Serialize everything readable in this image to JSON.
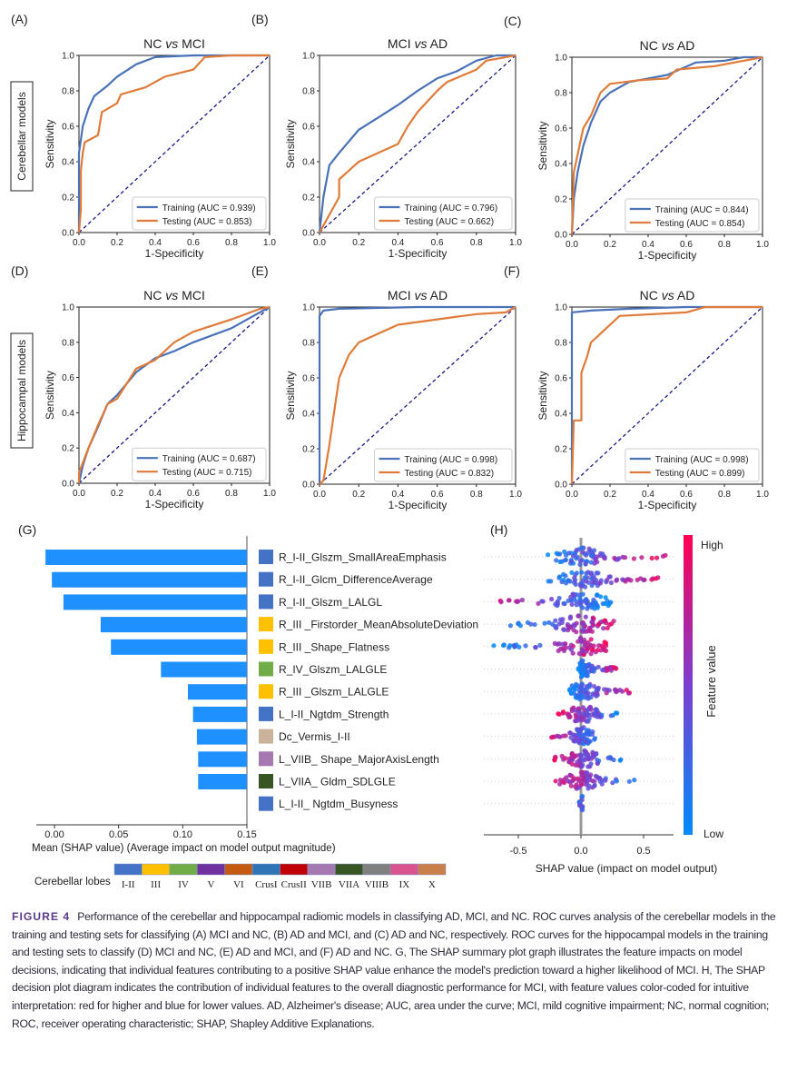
{
  "side_labels": {
    "cerebellar": "Cerebellar models",
    "hippocampal": "Hippocampal models"
  },
  "chart_data": [
    {
      "type": "line",
      "panel": "(A)",
      "title_left": "NC",
      "title_vs": "vs",
      "title_right": "MCI",
      "xlabel": "1-Specificity",
      "ylabel": "Sensitivity",
      "xlim": [
        0,
        1
      ],
      "ylim": [
        0,
        1
      ],
      "ticks": [
        "0.0",
        "0.2",
        "0.4",
        "0.6",
        "0.8",
        "1.0"
      ],
      "series": [
        {
          "name": "Training (AUC = 0.939)",
          "color": "#4a72b8",
          "points": [
            [
              0,
              0
            ],
            [
              0,
              0.45
            ],
            [
              0.02,
              0.6
            ],
            [
              0.05,
              0.7
            ],
            [
              0.08,
              0.77
            ],
            [
              0.15,
              0.83
            ],
            [
              0.2,
              0.88
            ],
            [
              0.3,
              0.95
            ],
            [
              0.4,
              0.99
            ],
            [
              0.6,
              1
            ],
            [
              1,
              1
            ]
          ]
        },
        {
          "name": "Testing (AUC = 0.853)",
          "color": "#e07b39",
          "points": [
            [
              0,
              0
            ],
            [
              0.01,
              0.13
            ],
            [
              0.01,
              0.35
            ],
            [
              0.02,
              0.45
            ],
            [
              0.03,
              0.51
            ],
            [
              0.1,
              0.55
            ],
            [
              0.12,
              0.68
            ],
            [
              0.2,
              0.73
            ],
            [
              0.22,
              0.78
            ],
            [
              0.35,
              0.82
            ],
            [
              0.45,
              0.88
            ],
            [
              0.6,
              0.92
            ],
            [
              0.66,
              0.99
            ],
            [
              0.8,
              1
            ],
            [
              1,
              1
            ]
          ]
        }
      ]
    },
    {
      "type": "line",
      "panel": "(B)",
      "title_left": "MCI",
      "title_vs": "vs",
      "title_right": "AD",
      "xlabel": "1-Specificity",
      "ylabel": "Sensitivity",
      "xlim": [
        0,
        1
      ],
      "ylim": [
        0,
        1
      ],
      "ticks": [
        "0.0",
        "0.2",
        "0.4",
        "0.6",
        "0.8",
        "1.0"
      ],
      "series": [
        {
          "name": "Training (AUC = 0.796)",
          "color": "#4a72b8",
          "points": [
            [
              0,
              0
            ],
            [
              0.02,
              0.2
            ],
            [
              0.05,
              0.38
            ],
            [
              0.1,
              0.45
            ],
            [
              0.2,
              0.58
            ],
            [
              0.3,
              0.65
            ],
            [
              0.4,
              0.72
            ],
            [
              0.5,
              0.8
            ],
            [
              0.6,
              0.87
            ],
            [
              0.7,
              0.91
            ],
            [
              0.8,
              0.97
            ],
            [
              0.9,
              1
            ],
            [
              1,
              1
            ]
          ]
        },
        {
          "name": "Testing (AUC = 0.662)",
          "color": "#e07b39",
          "points": [
            [
              0,
              0
            ],
            [
              0.05,
              0.1
            ],
            [
              0.1,
              0.2
            ],
            [
              0.1,
              0.3
            ],
            [
              0.2,
              0.4
            ],
            [
              0.3,
              0.45
            ],
            [
              0.4,
              0.5
            ],
            [
              0.45,
              0.6
            ],
            [
              0.5,
              0.68
            ],
            [
              0.6,
              0.8
            ],
            [
              0.65,
              0.85
            ],
            [
              0.8,
              0.92
            ],
            [
              0.85,
              0.97
            ],
            [
              1,
              1
            ]
          ]
        }
      ]
    },
    {
      "type": "line",
      "panel": "(C)",
      "title_left": "NC",
      "title_vs": "vs",
      "title_right": "AD",
      "xlabel": "1-Specificity",
      "ylabel": "Sensitivity",
      "xlim": [
        0,
        1
      ],
      "ylim": [
        0,
        1
      ],
      "ticks": [
        "0.0",
        "0.2",
        "0.4",
        "0.6",
        "0.8",
        "1.0"
      ],
      "series": [
        {
          "name": "Training (AUC = 0.844)",
          "color": "#4a72b8",
          "points": [
            [
              0,
              0
            ],
            [
              0.01,
              0.2
            ],
            [
              0.03,
              0.35
            ],
            [
              0.06,
              0.5
            ],
            [
              0.1,
              0.63
            ],
            [
              0.15,
              0.75
            ],
            [
              0.2,
              0.8
            ],
            [
              0.3,
              0.86
            ],
            [
              0.5,
              0.9
            ],
            [
              0.65,
              0.97
            ],
            [
              0.8,
              0.98
            ],
            [
              0.9,
              1
            ],
            [
              1,
              1
            ]
          ]
        },
        {
          "name": "Testing (AUC = 0.854)",
          "color": "#e07b39",
          "points": [
            [
              0,
              0
            ],
            [
              0.01,
              0.35
            ],
            [
              0.03,
              0.45
            ],
            [
              0.06,
              0.6
            ],
            [
              0.1,
              0.67
            ],
            [
              0.15,
              0.8
            ],
            [
              0.2,
              0.85
            ],
            [
              0.35,
              0.87
            ],
            [
              0.5,
              0.88
            ],
            [
              0.55,
              0.93
            ],
            [
              0.75,
              0.95
            ],
            [
              1,
              1
            ]
          ]
        }
      ]
    },
    {
      "type": "line",
      "panel": "(D)",
      "title_left": "NC",
      "title_vs": "vs",
      "title_right": "MCI",
      "xlabel": "1-Specificity",
      "ylabel": "Sensitivity",
      "xlim": [
        0,
        1
      ],
      "ylim": [
        0,
        1
      ],
      "ticks": [
        "0.0",
        "0.2",
        "0.4",
        "0.6",
        "0.8",
        "1.0"
      ],
      "series": [
        {
          "name": "Training (AUC = 0.687)",
          "color": "#4a72b8",
          "points": [
            [
              0,
              0
            ],
            [
              0.02,
              0.1
            ],
            [
              0.05,
              0.2
            ],
            [
              0.1,
              0.32
            ],
            [
              0.15,
              0.45
            ],
            [
              0.2,
              0.5
            ],
            [
              0.3,
              0.63
            ],
            [
              0.4,
              0.71
            ],
            [
              0.5,
              0.75
            ],
            [
              0.6,
              0.8
            ],
            [
              0.8,
              0.88
            ],
            [
              0.9,
              0.94
            ],
            [
              1,
              1
            ]
          ]
        },
        {
          "name": "Testing (AUC = 0.715)",
          "color": "#e07b39",
          "points": [
            [
              0,
              0
            ],
            [
              0,
              0.06
            ],
            [
              0.05,
              0.2
            ],
            [
              0.1,
              0.33
            ],
            [
              0.15,
              0.45
            ],
            [
              0.2,
              0.48
            ],
            [
              0.3,
              0.65
            ],
            [
              0.4,
              0.7
            ],
            [
              0.5,
              0.8
            ],
            [
              0.6,
              0.86
            ],
            [
              0.8,
              0.93
            ],
            [
              0.95,
              0.99
            ],
            [
              1,
              1
            ]
          ]
        }
      ]
    },
    {
      "type": "line",
      "panel": "(E)",
      "title_left": "MCI",
      "title_vs": "vs",
      "title_right": "AD",
      "xlabel": "1-Specificity",
      "ylabel": "Sensitivity",
      "xlim": [
        0,
        1
      ],
      "ylim": [
        0,
        1
      ],
      "ticks": [
        "0.0",
        "0.2",
        "0.4",
        "0.6",
        "0.8",
        "1.0"
      ],
      "series": [
        {
          "name": "Training (AUC = 0.998)",
          "color": "#4a72b8",
          "points": [
            [
              0,
              0
            ],
            [
              0,
              0.95
            ],
            [
              0.02,
              0.98
            ],
            [
              0.1,
              0.99
            ],
            [
              0.5,
              1
            ],
            [
              1,
              1
            ]
          ]
        },
        {
          "name": "Testing (AUC = 0.832)",
          "color": "#e07b39",
          "points": [
            [
              0,
              0
            ],
            [
              0.02,
              0.02
            ],
            [
              0.05,
              0.22
            ],
            [
              0.08,
              0.45
            ],
            [
              0.1,
              0.6
            ],
            [
              0.15,
              0.73
            ],
            [
              0.2,
              0.8
            ],
            [
              0.3,
              0.85
            ],
            [
              0.4,
              0.9
            ],
            [
              0.6,
              0.93
            ],
            [
              0.8,
              0.96
            ],
            [
              0.95,
              0.97
            ],
            [
              1,
              1
            ]
          ]
        }
      ]
    },
    {
      "type": "line",
      "panel": "(F)",
      "title_left": "NC",
      "title_vs": "vs",
      "title_right": "AD",
      "xlabel": "1-Specificity",
      "ylabel": "Sensitivity",
      "xlim": [
        0,
        1
      ],
      "ylim": [
        0,
        1
      ],
      "ticks": [
        "0.0",
        "0.2",
        "0.4",
        "0.6",
        "0.8",
        "1.0"
      ],
      "series": [
        {
          "name": "Training (AUC = 0.998)",
          "color": "#4a72b8",
          "points": [
            [
              0,
              0
            ],
            [
              0,
              0.97
            ],
            [
              0.1,
              0.98
            ],
            [
              0.3,
              0.99
            ],
            [
              0.6,
              1
            ],
            [
              1,
              1
            ]
          ]
        },
        {
          "name": "Testing (AUC = 0.899)",
          "color": "#e07b39",
          "points": [
            [
              0,
              0
            ],
            [
              0.01,
              0.36
            ],
            [
              0.05,
              0.36
            ],
            [
              0.05,
              0.63
            ],
            [
              0.08,
              0.72
            ],
            [
              0.1,
              0.8
            ],
            [
              0.15,
              0.85
            ],
            [
              0.25,
              0.95
            ],
            [
              0.6,
              0.97
            ],
            [
              0.7,
              1
            ],
            [
              1,
              1
            ]
          ]
        }
      ]
    },
    {
      "type": "bar",
      "panel": "(G)",
      "orientation": "horizontal",
      "xlabel": "Mean (SHAP value) (Average impact on model output magnitude)",
      "xlim": [
        -0.008,
        0.15
      ],
      "ticks": [
        "0.00",
        "0.05",
        "0.10",
        "0.15"
      ],
      "tick_values": [
        0,
        0.05,
        0.1,
        0.15
      ],
      "bar_color": "#1e90ff",
      "features": [
        {
          "label": "R_I-II_Glszm_SmallAreaEmphasis",
          "bar_start": -0.007,
          "color": "#4472c4"
        },
        {
          "label": "R_I-II_Glcm_DifferenceAverage",
          "bar_start": -0.002,
          "color": "#4472c4"
        },
        {
          "label": "R_I-II_Glszm_LALGL",
          "bar_start": 0.007,
          "color": "#4472c4"
        },
        {
          "label": "R_III _Firstorder_MeanAbsoluteDeviation",
          "bar_start": 0.036,
          "color": "#ffc000"
        },
        {
          "label": "R_III _Shape_Flatness",
          "bar_start": 0.044,
          "color": "#ffc000"
        },
        {
          "label": "R_IV_Glszm_LALGLE",
          "bar_start": 0.083,
          "color": "#70ad47"
        },
        {
          "label": "R_III _Glszm_LALGLE",
          "bar_start": 0.104,
          "color": "#ffc000"
        },
        {
          "label": "L_I-II_Ngtdm_Strength",
          "bar_start": 0.108,
          "color": "#4472c4"
        },
        {
          "label": "Dc_Vermis_I-II",
          "bar_start": 0.111,
          "color": "#c9b49a"
        },
        {
          "label": "L_VIIB_ Shape_MajorAxisLength",
          "bar_start": 0.112,
          "color": "#a678b0"
        },
        {
          "label": "L_VIIA_ Gldm_SDLGLE",
          "bar_start": 0.112,
          "color": "#375623"
        },
        {
          "label": "L_I-II_ Ngtdm_Busyness",
          "bar_start": null,
          "color": "#4472c4"
        }
      ],
      "lobes_title": "Cerebellar lobes",
      "lobes": [
        {
          "label": "I-II",
          "color": "#4472c4"
        },
        {
          "label": "III",
          "color": "#ffc000"
        },
        {
          "label": "IV",
          "color": "#70ad47"
        },
        {
          "label": "V",
          "color": "#7030a0"
        },
        {
          "label": "VI",
          "color": "#c55a11"
        },
        {
          "label": "CrusI",
          "color": "#2e75b6"
        },
        {
          "label": "CrusII",
          "color": "#c00000"
        },
        {
          "label": "VIIB",
          "color": "#a678b0"
        },
        {
          "label": "VIIA",
          "color": "#375623"
        },
        {
          "label": "VIIIB",
          "color": "#808080"
        },
        {
          "label": "IX",
          "color": "#d9548f"
        },
        {
          "label": "X",
          "color": "#c87f4a"
        }
      ]
    },
    {
      "type": "scatter",
      "panel": "(H)",
      "xlabel": "SHAP value (impact on model output)",
      "xlim": [
        -0.77,
        0.74
      ],
      "ticks": [
        "-0.5",
        "0.0",
        "0.5"
      ],
      "tick_values": [
        -0.5,
        0,
        0.5
      ],
      "colorbar": {
        "label": "Feature value",
        "high": "High",
        "low": "Low",
        "high_color": "#ff0052",
        "low_color": "#008bfb"
      },
      "rows": [
        {
          "min": -0.3,
          "max": 0.68,
          "high_side": "right"
        },
        {
          "min": -0.28,
          "max": 0.62,
          "high_side": "right"
        },
        {
          "min": -0.65,
          "max": 0.25,
          "high_side": "left"
        },
        {
          "min": -0.62,
          "max": 0.33,
          "high_side": "right"
        },
        {
          "min": -0.72,
          "max": 0.2,
          "high_side": "right"
        },
        {
          "min": -0.02,
          "max": 0.29,
          "high_side": "right"
        },
        {
          "min": -0.12,
          "max": 0.41,
          "high_side": "right"
        },
        {
          "min": -0.2,
          "max": 0.32,
          "high_side": "left"
        },
        {
          "min": -0.26,
          "max": 0.15,
          "high_side": "left"
        },
        {
          "min": -0.22,
          "max": 0.33,
          "high_side": "left"
        },
        {
          "min": -0.22,
          "max": 0.47,
          "high_side": "left"
        },
        {
          "min": -0.02,
          "max": 0.02,
          "high_side": "none"
        }
      ]
    }
  ],
  "caption": {
    "label": "FIGURE 4",
    "text": "Performance of the cerebellar and hippocampal radiomic models in classifying AD, MCI, and NC. ROC curves analysis of the cerebellar models in the training and testing sets for classifying (A) MCI and NC, (B) AD and MCI, and (C) AD and NC, respectively. ROC curves for the hippocampal models in the training and testing sets to classify (D) MCI and NC, (E) AD and MCI, and (F) AD and NC. G, The SHAP summary plot graph illustrates the feature impacts on model decisions, indicating that individual features contributing to a positive SHAP value enhance the model's prediction toward a higher likelihood of MCI. H, The SHAP decision plot diagram indicates the contribution of individual features to the overall diagnostic performance for MCI, with feature values color-coded for intuitive interpretation: red for higher and blue for lower values. AD, Alzheimer's disease; AUC, area under the curve; MCI, mild cognitive impairment; NC, normal cognition; ROC, receiver operating characteristic; SHAP, Shapley Additive Explanations."
  }
}
